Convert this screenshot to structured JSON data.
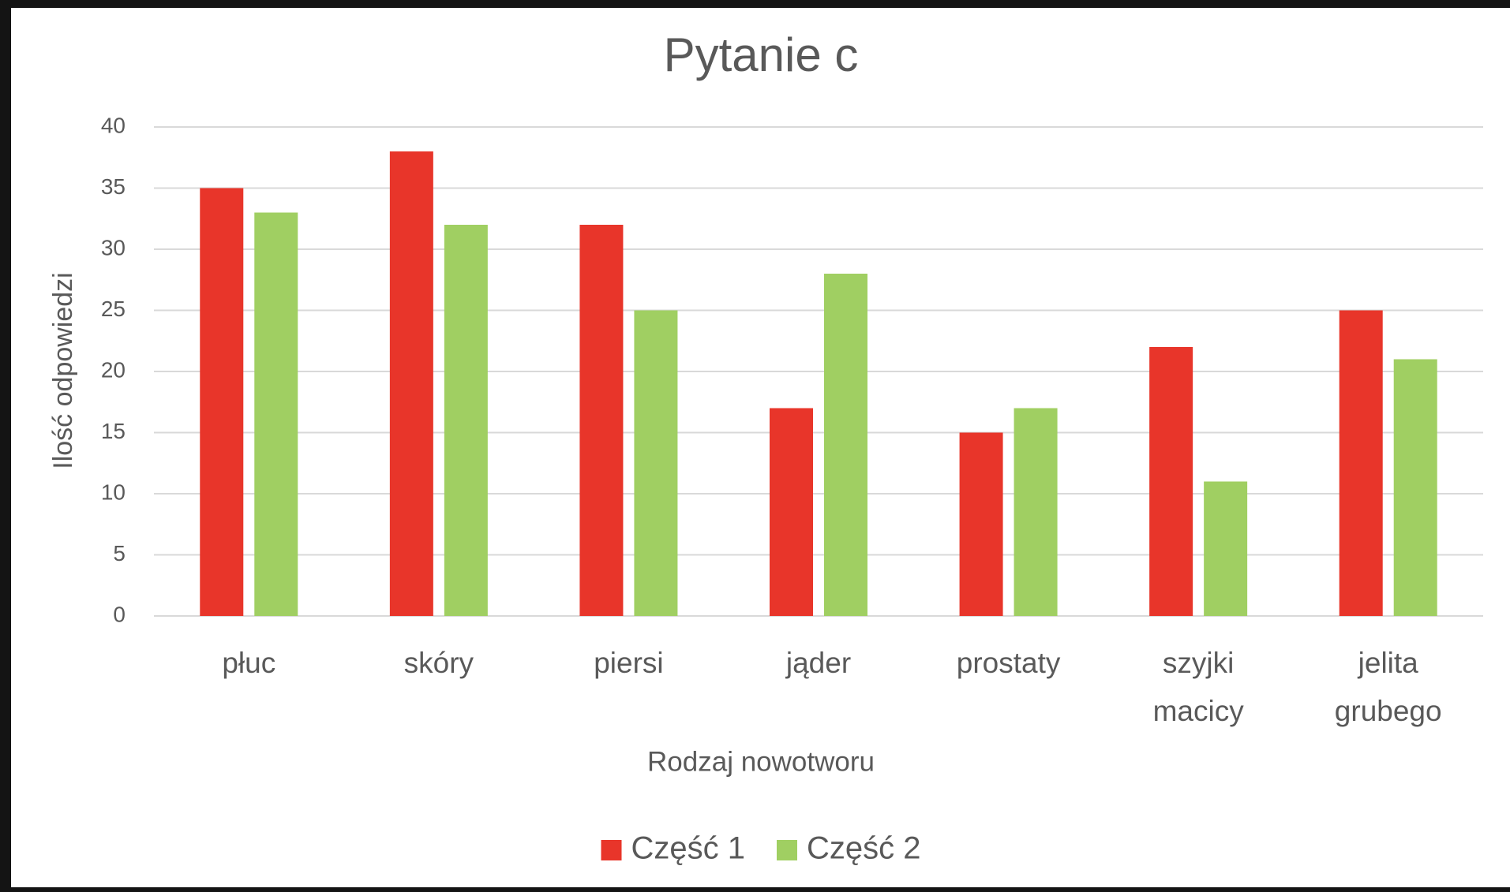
{
  "chart_data": {
    "type": "bar",
    "title": "Pytanie c",
    "x_label": "Rodzaj nowotworu",
    "y_label": "Ilość odpowiedzi",
    "categories": [
      "płuc",
      "skóry",
      "piersi",
      "jąder",
      "prostaty",
      "szyjki macicy",
      "jelita grubego"
    ],
    "series": [
      {
        "name": "Część 1",
        "color": "#e8352a",
        "values": [
          35,
          38,
          32,
          17,
          15,
          22,
          25
        ]
      },
      {
        "name": "Część 2",
        "color": "#a0cf62",
        "values": [
          33,
          32,
          25,
          28,
          17,
          11,
          21
        ]
      }
    ],
    "ylim": [
      0,
      40
    ],
    "yticks": [
      0,
      5,
      10,
      15,
      20,
      25,
      30,
      35,
      40
    ],
    "grid": true,
    "legend": "bottom"
  }
}
